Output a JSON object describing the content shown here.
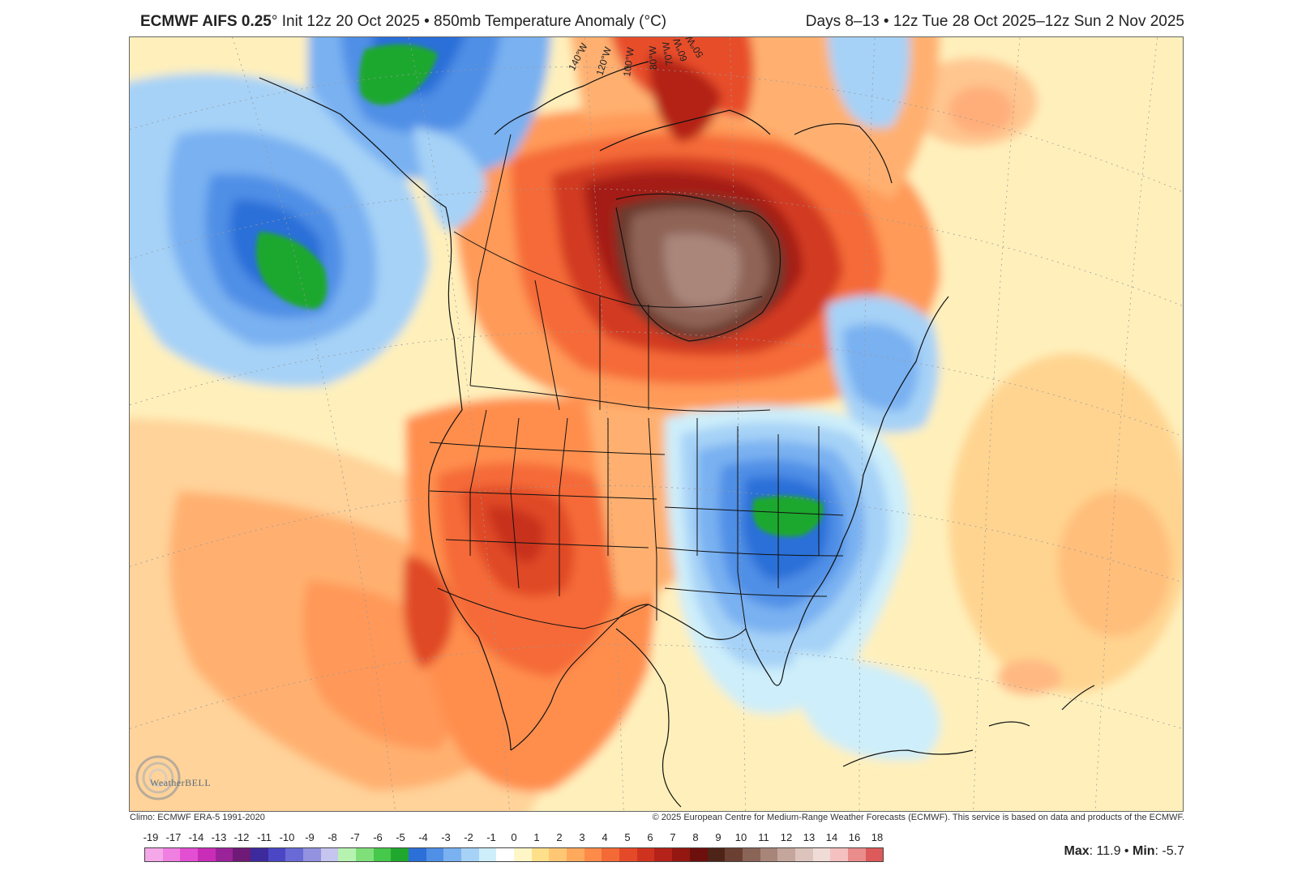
{
  "header": {
    "title_model": "ECMWF AIFS 0.25",
    "title_degree": "°",
    "title_rest": " Init 12z 20 Oct 2025 • 850mb Temperature Anomaly (°C)",
    "valid_range": "Days 8–13 • 12z Tue 28 Oct 2025–12z Sun 2 Nov 2025"
  },
  "map": {
    "region": "North America",
    "longitude_labels": [
      "140°W",
      "120°W",
      "100°W",
      "80°W",
      "70°W",
      "60°W",
      "50°W"
    ],
    "watermark": "WeatherBELL"
  },
  "footer": {
    "climo": "Climo: ECMWF ERA-5 1991-2020",
    "copyright": "© 2025 European Centre for Medium-Range Weather Forecasts (ECMWF). This service is based on data and products of the ECMWF.",
    "max_label": "Max",
    "max_value": ": 11.9",
    "sep": " • ",
    "min_label": "Min",
    "min_value": ": -5.7"
  },
  "colorbar": {
    "labels": [
      "-19",
      "-17",
      "-14",
      "-13",
      "-12",
      "-11",
      "-10",
      "-9",
      "-8",
      "-7",
      "-6",
      "-5",
      "-4",
      "-3",
      "-2",
      "-1",
      "0",
      "1",
      "2",
      "3",
      "4",
      "5",
      "6",
      "7",
      "8",
      "9",
      "10",
      "11",
      "12",
      "13",
      "14",
      "16",
      "18"
    ],
    "colors": [
      "#f5a8e8",
      "#ef7fe0",
      "#e34fd2",
      "#c92db8",
      "#9b2399",
      "#6e1a76",
      "#3d2a9c",
      "#4a46c4",
      "#6a6ad6",
      "#9292e0",
      "#c5c5ef",
      "#b7f3b0",
      "#7fe07a",
      "#46c84a",
      "#1fa82d",
      "#2c6fd8",
      "#4f8fe6",
      "#79b1f1",
      "#a6d2f7",
      "#cdeefa",
      "#ffffff",
      "#fff6c8",
      "#ffe08a",
      "#ffc773",
      "#ffa95d",
      "#ff8b4a",
      "#f36a37",
      "#e44a28",
      "#cf3320",
      "#b42219",
      "#941711",
      "#6d0f0c",
      "#4e2418",
      "#6b4032",
      "#8a6457",
      "#a88579",
      "#c5a69c",
      "#dcc4bd",
      "#f0dcd7",
      "#f5c0c0",
      "#ea8c8c",
      "#dd5a5a"
    ]
  }
}
